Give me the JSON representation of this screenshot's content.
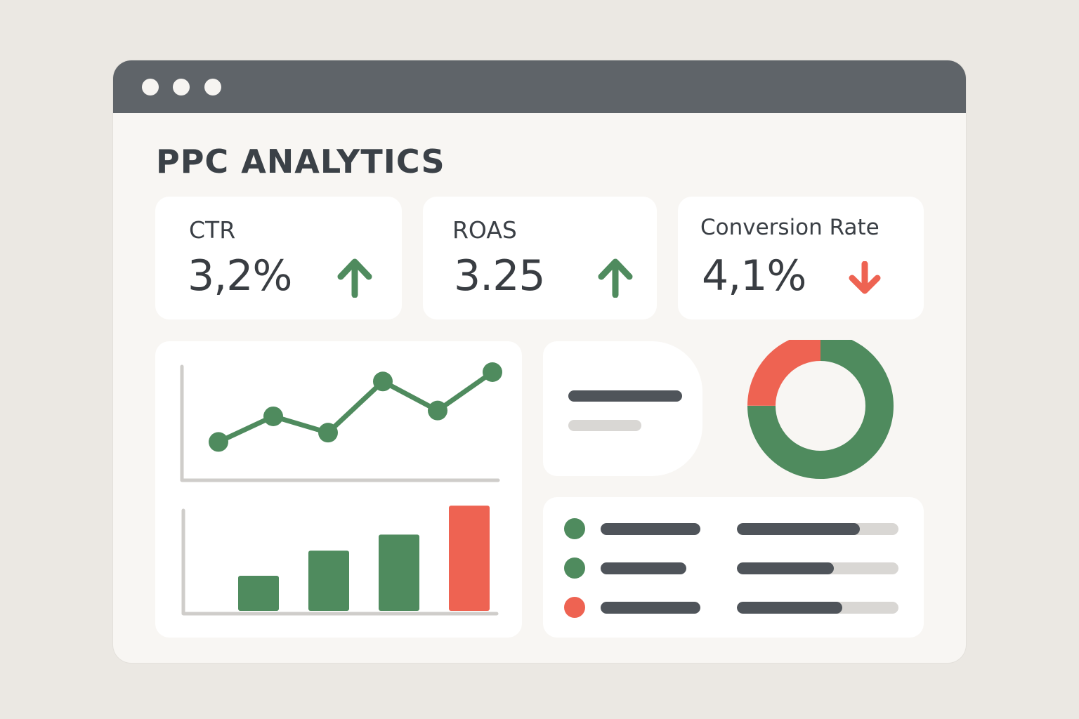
{
  "window": {
    "controls": [
      "window-dot",
      "window-dot",
      "window-dot"
    ]
  },
  "header": {
    "title": "PPC ANALYTICS"
  },
  "kpis": [
    {
      "label": "CTR",
      "value": "3,2%",
      "trend": "up",
      "trend_icon": "arrow-up-icon"
    },
    {
      "label": "ROAS",
      "value": "3.25",
      "trend": "up",
      "trend_icon": "arrow-up-icon"
    },
    {
      "label": "Conversion Rate",
      "value": "4,1%",
      "trend": "down",
      "trend_icon": "arrow-down-icon"
    }
  ],
  "colors": {
    "green": "#4f8b5e",
    "red": "#ee6352",
    "dark_bar": "#4f545a",
    "light_bar": "#d9d7d4",
    "titlebar": "#5f6469"
  },
  "chart_data": [
    {
      "type": "line",
      "x": [
        1,
        2,
        3,
        4,
        5,
        6
      ],
      "values": [
        1.0,
        3.2,
        1.8,
        6.2,
        3.7,
        7.0
      ],
      "ylim": [
        0,
        10
      ]
    },
    {
      "type": "bar",
      "values": [
        4.6,
        7.9,
        10.0,
        13.8
      ],
      "colors": [
        "#4f8b5e",
        "#4f8b5e",
        "#4f8b5e",
        "#ee6352"
      ],
      "ylim": [
        0,
        14
      ]
    },
    {
      "type": "pie",
      "values": [
        75,
        25
      ],
      "colors": [
        "#4f8b5e",
        "#ee6352"
      ]
    }
  ],
  "list": {
    "rows": [
      {
        "status_color": "#4f8b5e",
        "progress": 0.76
      },
      {
        "status_color": "#4f8b5e",
        "progress": 0.6
      },
      {
        "status_color": "#ee6352",
        "progress": 0.65
      }
    ]
  }
}
